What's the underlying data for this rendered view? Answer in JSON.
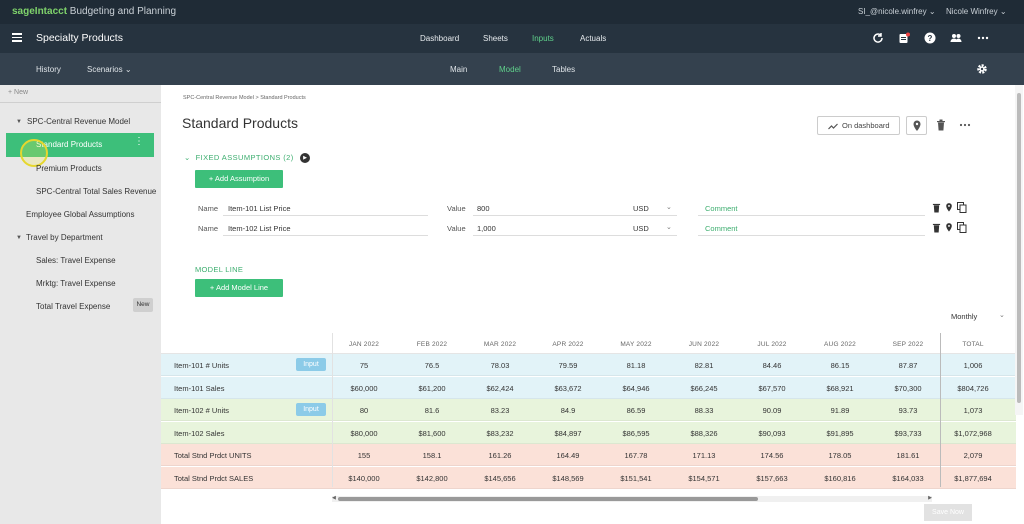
{
  "topbar": {
    "brand_prefix": "sageIntacct",
    "brand_suffix": " Budgeting and Planning",
    "user_id": "SI_@nicole.winfrey",
    "user_name": "Nicole Winfrey",
    "chevron": "⌄"
  },
  "appbar": {
    "title": "Specialty Products",
    "nav": [
      "Dashboard",
      "Sheets",
      "Inputs",
      "Actuals"
    ],
    "active_nav": "Inputs",
    "icons": [
      "refresh-icon",
      "notification-icon",
      "help-icon",
      "users-icon",
      "more-icon"
    ]
  },
  "subbar": {
    "history": "History",
    "scenarios": "Scenarios",
    "tabs": [
      "Main",
      "Model",
      "Tables"
    ],
    "active_tab": "Model"
  },
  "sidebar": {
    "new_label": "New",
    "items": [
      {
        "label": "SPC-Central Revenue Model"
      },
      {
        "label": "Standard Products"
      },
      {
        "label": "Premium Products"
      },
      {
        "label": "SPC-Central Total Sales Revenue"
      },
      {
        "label": "Employee Global Assumptions"
      },
      {
        "label": "Travel by Department"
      },
      {
        "label": "Sales: Travel Expense"
      },
      {
        "label": "Mrktg: Travel Expense"
      },
      {
        "label": "Total Travel Expense"
      }
    ],
    "new_badge": "New",
    "dots": "⋮"
  },
  "main": {
    "breadcrumb": "SPC-Central Revenue Model > Standard Products",
    "title": "Standard Products",
    "on_dashboard": "On dashboard",
    "fixed_assumptions": "FIXED ASSUMPTIONS (2)",
    "add_assumption": "+ Add Assumption",
    "assumptions": [
      {
        "name_label": "Name",
        "name": "Item-101 List Price",
        "value_label": "Value",
        "value": "800",
        "currency": "USD",
        "comment": "Comment"
      },
      {
        "name_label": "Name",
        "name": "Item-102 List Price",
        "value_label": "Value",
        "value": "1,000",
        "currency": "USD",
        "comment": "Comment"
      }
    ],
    "model_line": "MODEL LINE",
    "add_model_line": "+ Add Model Line",
    "period": "Monthly",
    "save_button": "Save Now"
  },
  "grid": {
    "columns": [
      "JAN 2022",
      "FEB 2022",
      "MAR 2022",
      "APR 2022",
      "MAY 2022",
      "JUN 2022",
      "JUL 2022",
      "AUG 2022",
      "SEP 2022",
      "TOTAL"
    ],
    "input_badge": "Input",
    "rows": [
      {
        "label": "Item-101 # Units",
        "input": true,
        "bg": "#e2f3f8",
        "values": [
          "75",
          "76.5",
          "78.03",
          "79.59",
          "81.18",
          "82.81",
          "84.46",
          "86.15",
          "87.87",
          "1,006"
        ]
      },
      {
        "label": "Item-101 Sales",
        "input": false,
        "bg": "#e2f3f8",
        "values": [
          "$60,000",
          "$61,200",
          "$62,424",
          "$63,672",
          "$64,946",
          "$66,245",
          "$67,570",
          "$68,921",
          "$70,300",
          "$804,726"
        ]
      },
      {
        "label": "Item-102 # Units",
        "input": true,
        "bg": "#e8f4dc",
        "values": [
          "80",
          "81.6",
          "83.23",
          "84.9",
          "86.59",
          "88.33",
          "90.09",
          "91.89",
          "93.73",
          "1,073"
        ]
      },
      {
        "label": "Item-102 Sales",
        "input": false,
        "bg": "#e8f4dc",
        "values": [
          "$80,000",
          "$81,600",
          "$83,232",
          "$84,897",
          "$86,595",
          "$88,326",
          "$90,093",
          "$91,895",
          "$93,733",
          "$1,072,968"
        ]
      },
      {
        "label": "Total Stnd Prdct UNITS",
        "input": false,
        "bg": "#fbe1d8",
        "values": [
          "155",
          "158.1",
          "161.26",
          "164.49",
          "167.78",
          "171.13",
          "174.56",
          "178.05",
          "181.61",
          "2,079"
        ]
      },
      {
        "label": "Total Stnd Prdct SALES",
        "input": false,
        "bg": "#fbe1d8",
        "values": [
          "$140,000",
          "$142,800",
          "$145,656",
          "$148,569",
          "$151,541",
          "$154,571",
          "$157,663",
          "$160,816",
          "$164,033",
          "$1,877,694"
        ]
      }
    ]
  }
}
